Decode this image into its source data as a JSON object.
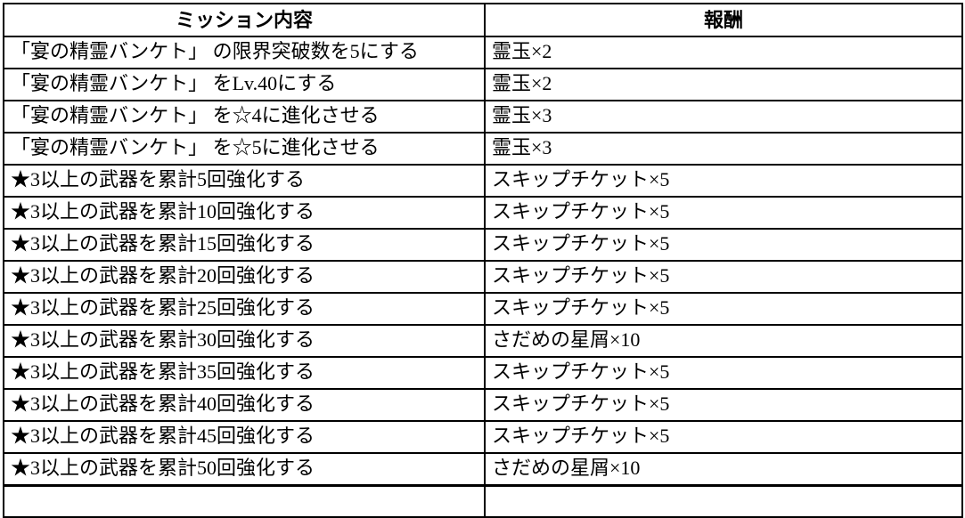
{
  "table": {
    "headers": [
      {
        "label": "ミッション内容"
      },
      {
        "label": "報酬"
      }
    ],
    "rows": [
      {
        "mission": "「宴の精霊バンケト」 の限界突破数を5にする",
        "reward": "霊玉×2"
      },
      {
        "mission": "「宴の精霊バンケト」 をLv.40にする",
        "reward": "霊玉×2"
      },
      {
        "mission": "「宴の精霊バンケト」 を☆4に進化させる",
        "reward": "霊玉×3"
      },
      {
        "mission": "「宴の精霊バンケト」 を☆5に進化させる",
        "reward": "霊玉×3"
      },
      {
        "mission": "★3以上の武器を累計5回強化する",
        "reward": "スキップチケット×5"
      },
      {
        "mission": "★3以上の武器を累計10回強化する",
        "reward": "スキップチケット×5"
      },
      {
        "mission": "★3以上の武器を累計15回強化する",
        "reward": "スキップチケット×5"
      },
      {
        "mission": "★3以上の武器を累計20回強化する",
        "reward": "スキップチケット×5"
      },
      {
        "mission": "★3以上の武器を累計25回強化する",
        "reward": "スキップチケット×5"
      },
      {
        "mission": "★3以上の武器を累計30回強化する",
        "reward": "さだめの星屑×10"
      },
      {
        "mission": "★3以上の武器を累計35回強化する",
        "reward": "スキップチケット×5"
      },
      {
        "mission": "★3以上の武器を累計40回強化する",
        "reward": "スキップチケット×5"
      },
      {
        "mission": "★3以上の武器を累計45回強化する",
        "reward": "スキップチケット×5"
      },
      {
        "mission": "★3以上の武器を累計50回強化する",
        "reward": "さだめの星屑×10"
      }
    ]
  },
  "colors": {
    "border": "#000000",
    "text": "#000000",
    "background": "#ffffff"
  }
}
